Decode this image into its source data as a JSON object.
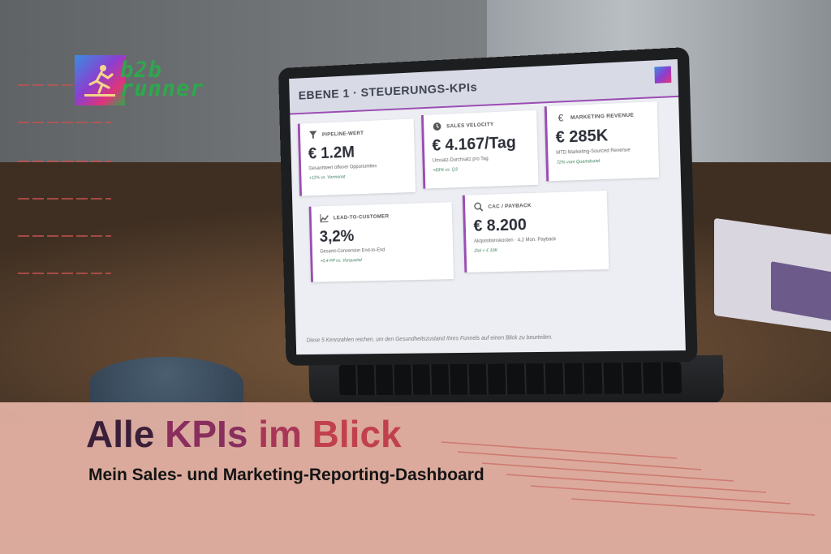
{
  "logo": {
    "line1": "b2b",
    "line2": "runner"
  },
  "dashboard": {
    "title": "EBENE 1  ·  STEUERUNGS-KPIs",
    "cards": [
      {
        "icon": "funnel-euro-icon",
        "label": "PIPELINE-WERT",
        "value": "€ 1.2M",
        "sub": "Gesamtwert offener Opportunities",
        "delta": "+12% vs. Vormonat"
      },
      {
        "icon": "clock-icon",
        "label": "SALES VELOCITY",
        "value": "€ 4.167/Tag",
        "sub": "Umsatz-Durchsatz pro Tag",
        "delta": "+83% vs. Q3"
      },
      {
        "icon": "euro-icon",
        "label": "MARKETING REVENUE",
        "value": "€ 285K",
        "sub": "MTD Marketing-Sourced Revenue",
        "delta": "72% vom Quartalsziel"
      },
      {
        "icon": "trend-chart-icon",
        "label": "LEAD-TO-CUSTOMER",
        "value": "3,2%",
        "sub": "Gesamt-Conversion End-to-End",
        "delta": "+0,4 PP vs. Vorquartal"
      },
      {
        "icon": "search-euro-icon",
        "label": "CAC / PAYBACK",
        "value": "€ 8.200",
        "sub": "Akquisitionskosten · 4,2 Mon. Payback",
        "delta": "Ziel < € 10K"
      }
    ],
    "footer": "Diese 5 Kennzahlen reichen, um den Gesundheitszustand Ihres Funnels auf einen Blick zu beurteilen."
  },
  "banner": {
    "headline": {
      "w1": "Alle",
      "w2": "KPIs",
      "w3": "im",
      "w4": "Blick"
    },
    "subline": "Mein Sales- und Marketing-Reporting-Dashboard"
  },
  "colors": {
    "accent": "#9b4db3",
    "banner": "#e2b0a2",
    "headline_dark": "#3a1f38",
    "headline_red": "#c1404e"
  }
}
